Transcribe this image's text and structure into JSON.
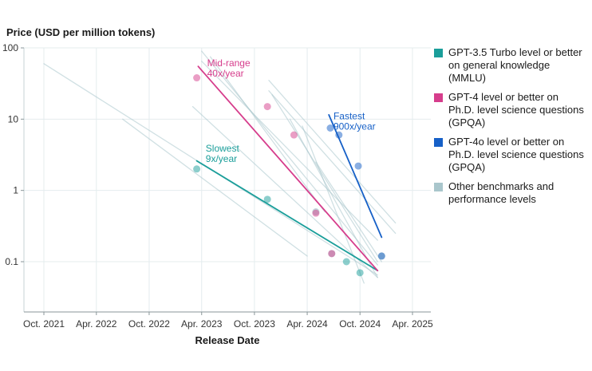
{
  "chart_data": {
    "type": "scatter",
    "title": "",
    "ylabel": "Price (USD per million tokens)",
    "xlabel": "Release Date",
    "y_scale": "log",
    "ylim": [
      0.04,
      100
    ],
    "xlim": [
      "2021-08-01",
      "2025-07-01"
    ],
    "y_ticks": [
      {
        "value": 100,
        "label": "100"
      },
      {
        "value": 10,
        "label": "10"
      },
      {
        "value": 1,
        "label": "1"
      },
      {
        "value": 0.1,
        "label": "0.1"
      }
    ],
    "x_ticks": [
      {
        "value": "2021-10-01",
        "label": "Oct. 2021"
      },
      {
        "value": "2022-04-01",
        "label": "Apr. 2022"
      },
      {
        "value": "2022-10-01",
        "label": "Oct. 2022"
      },
      {
        "value": "2023-04-01",
        "label": "Apr. 2023"
      },
      {
        "value": "2023-10-01",
        "label": "Oct. 2023"
      },
      {
        "value": "2024-04-01",
        "label": "Apr. 2024"
      },
      {
        "value": "2024-10-01",
        "label": "Oct. 2024"
      },
      {
        "value": "2025-04-01",
        "label": "Apr. 2025"
      }
    ],
    "grid": true,
    "legend_position": "right",
    "series": [
      {
        "name": "GPT-3.5 Turbo level or better on general knowledge (MMLU)",
        "color": "#1a9e9a",
        "points": [
          {
            "x": "2023-03-15",
            "y": 2.0
          },
          {
            "x": "2023-11-15",
            "y": 0.75
          },
          {
            "x": "2024-08-15",
            "y": 0.1
          },
          {
            "x": "2024-10-01",
            "y": 0.07
          }
        ],
        "trend": {
          "start": {
            "x": "2023-03-15",
            "y": 2.6
          },
          "end": {
            "x": "2024-12-01",
            "y": 0.075
          }
        },
        "annotation": {
          "lines": [
            "Slowest",
            "9x/year"
          ],
          "x": "2023-04-15",
          "y": 3.5
        }
      },
      {
        "name": "GPT-4 level or better on Ph.D. level science questions (GPQA)",
        "color": "#d63d8c",
        "points": [
          {
            "x": "2023-03-15",
            "y": 38
          },
          {
            "x": "2023-11-15",
            "y": 15
          },
          {
            "x": "2024-02-15",
            "y": 6
          },
          {
            "x": "2024-05-01",
            "y": 0.48
          },
          {
            "x": "2024-06-25",
            "y": 0.13
          }
        ],
        "trend": {
          "start": {
            "x": "2023-03-20",
            "y": 55
          },
          "end": {
            "x": "2024-12-01",
            "y": 0.075
          }
        },
        "annotation": {
          "lines": [
            "Mid-range",
            "40x/year"
          ],
          "x": "2023-04-20",
          "y": 55
        }
      },
      {
        "name": "GPT-4o level or better on Ph.D. level science questions (GPQA)",
        "color": "#1660c7",
        "points": [
          {
            "x": "2024-06-20",
            "y": 7.5
          },
          {
            "x": "2024-07-20",
            "y": 6
          },
          {
            "x": "2024-09-25",
            "y": 2.2
          },
          {
            "x": "2024-12-15",
            "y": 0.12
          }
        ],
        "trend": {
          "start": {
            "x": "2024-06-15",
            "y": 11.5
          },
          "end": {
            "x": "2024-12-15",
            "y": 0.22
          }
        },
        "annotation": {
          "lines": [
            "Fastest",
            "900x/year"
          ],
          "x": "2024-07-01",
          "y": 10
        }
      },
      {
        "name": "Other benchmarks and performance levels",
        "color": "#a9c6cc",
        "points": [
          {
            "x": "2024-06-25",
            "y": 0.13
          },
          {
            "x": "2024-05-01",
            "y": 0.5
          },
          {
            "x": "2024-12-15",
            "y": 0.12
          }
        ],
        "trend_lines": [
          {
            "start": {
              "x": "2021-10-01",
              "y": 60
            },
            "end": {
              "x": "2024-12-01",
              "y": 0.065
            }
          },
          {
            "x_start": "2023-03-01",
            "y_start": 15,
            "x_end": "2024-12-01",
            "y_end": 0.06
          },
          {
            "x_start": "2022-07-01",
            "y_start": 10,
            "x_end": "2024-04-01",
            "y_end": 0.12
          },
          {
            "x_start": "2023-04-01",
            "y_start": 90,
            "x_end": "2024-12-01",
            "y_end": 0.09
          },
          {
            "x_start": "2023-04-01",
            "y_start": 65,
            "x_end": "2024-12-01",
            "y_end": 0.2
          },
          {
            "x_start": "2023-05-01",
            "y_start": 75,
            "x_end": "2024-06-01",
            "y_end": 0.5
          },
          {
            "x_start": "2023-11-20",
            "y_start": 35,
            "x_end": "2025-02-01",
            "y_end": 0.35
          },
          {
            "x_start": "2023-11-20",
            "y_start": 25,
            "x_end": "2025-02-01",
            "y_end": 0.25
          },
          {
            "x_start": "2023-12-01",
            "y_start": 22,
            "x_end": "2024-12-01",
            "y_end": 0.1
          },
          {
            "x_start": "2024-02-01",
            "y_start": 10,
            "x_end": "2024-12-01",
            "y_end": 0.06
          },
          {
            "x_start": "2024-03-15",
            "y_start": 8,
            "x_end": "2024-10-15",
            "y_end": 0.05
          },
          {
            "x_start": "2024-05-01",
            "y_start": 2.5,
            "x_end": "2024-12-15",
            "y_end": 0.1
          }
        ]
      }
    ]
  }
}
